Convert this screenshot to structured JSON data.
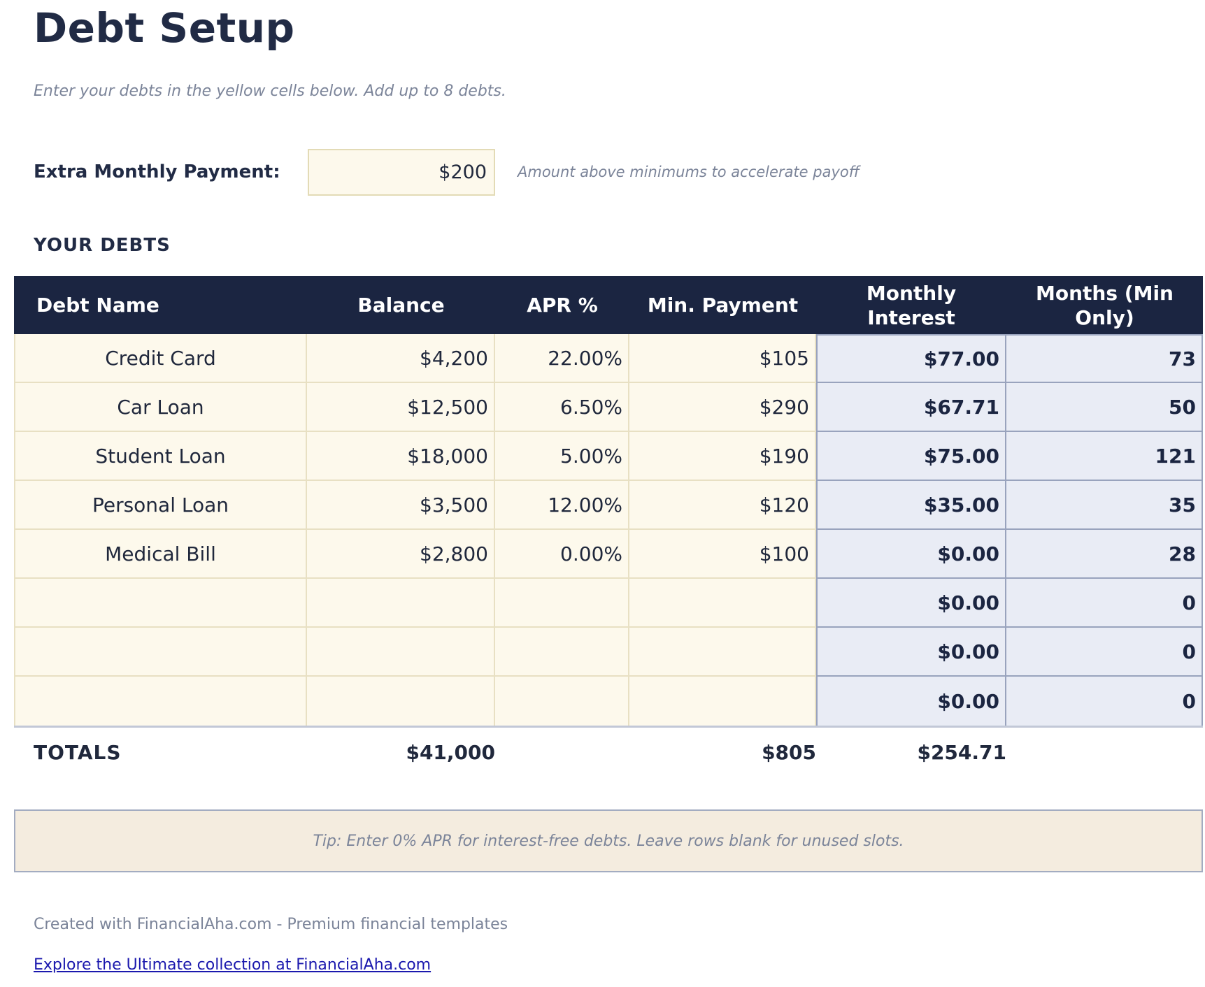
{
  "page": {
    "title": "Debt Setup",
    "subtitle": "Enter your debts in the yellow cells below. Add up to 8 debts.",
    "extra_payment": {
      "label": "Extra Monthly Payment:",
      "value": "$200",
      "note": "Amount above minimums to accelerate payoff"
    },
    "section_heading": "YOUR DEBTS",
    "table": {
      "columns": [
        "Debt Name",
        "Balance",
        "APR %",
        "Min. Payment",
        "Monthly Interest",
        "Months (Min Only)"
      ],
      "rows": [
        [
          "Credit Card",
          "$4,200",
          "22.00%",
          "$105",
          "$77.00",
          "73"
        ],
        [
          "Car Loan",
          "$12,500",
          "6.50%",
          "$290",
          "$67.71",
          "50"
        ],
        [
          "Student Loan",
          "$18,000",
          "5.00%",
          "$190",
          "$75.00",
          "121"
        ],
        [
          "Personal Loan",
          "$3,500",
          "12.00%",
          "$120",
          "$35.00",
          "35"
        ],
        [
          "Medical Bill",
          "$2,800",
          "0.00%",
          "$100",
          "$0.00",
          "28"
        ],
        [
          "",
          "",
          "",
          "",
          "$0.00",
          "0"
        ],
        [
          "",
          "",
          "",
          "",
          "$0.00",
          "0"
        ],
        [
          "",
          "",
          "",
          "",
          "$0.00",
          "0"
        ]
      ],
      "totals": {
        "label": "TOTALS",
        "balance": "$41,000",
        "min_payment": "$805",
        "monthly_interest": "$254.71"
      }
    },
    "tip": "Tip: Enter 0% APR for interest-free debts. Leave rows blank for unused slots.",
    "footer": {
      "credit": "Created with FinancialAha.com - Premium financial templates",
      "link": "Explore the Ultimate collection at FinancialAha.com"
    },
    "colors": {
      "header_navy": "#1b2541",
      "input_cell_bg": "#fdf9ec",
      "input_cell_border": "#e8e0c3",
      "computed_cell_bg": "#e9ecf5",
      "computed_cell_border": "#99a3bd",
      "tip_bg": "#f4ecdf",
      "link_blue": "#1b19ae",
      "muted_text": "#7b8499"
    }
  }
}
